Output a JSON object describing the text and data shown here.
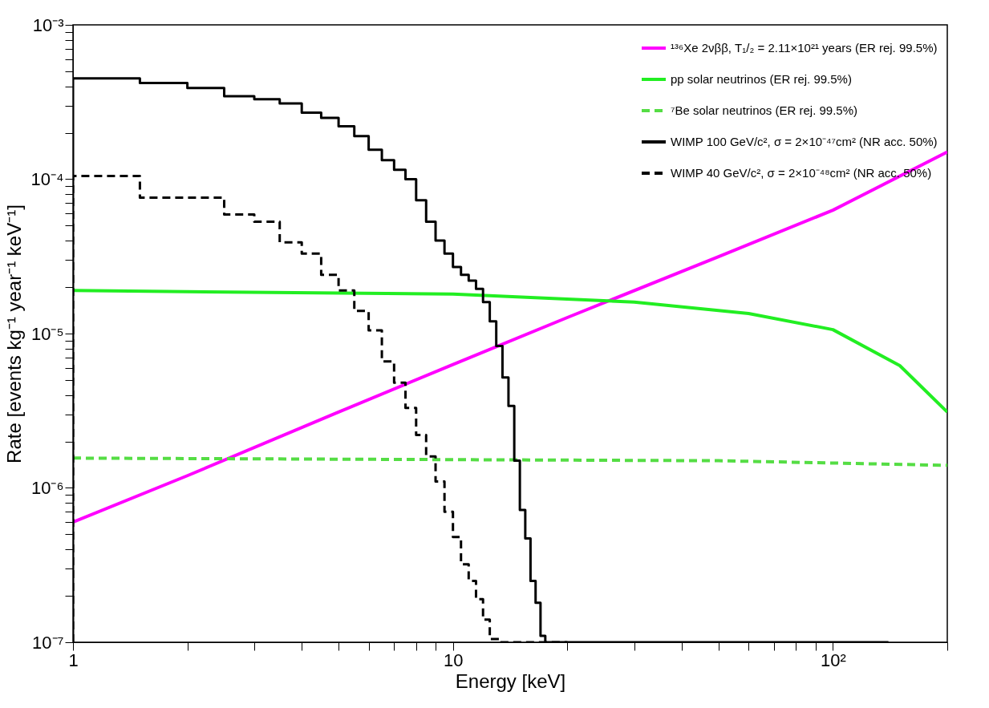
{
  "chart_data": {
    "type": "line",
    "xlabel": "Energy [keV]",
    "ylabel": "Rate [events kg⁻¹ year⁻¹ keV⁻¹]",
    "log": "xy",
    "legend": "top right",
    "xlim": [
      1,
      200
    ],
    "ylim": [
      1e-07,
      0.001
    ],
    "xticks": [
      1,
      {
        "value": 2,
        "label": null
      },
      {
        "value": 3,
        "label": null
      },
      {
        "value": 4,
        "label": null
      },
      {
        "value": 5,
        "label": null
      },
      {
        "value": 6,
        "label": null
      },
      {
        "value": 7,
        "label": null
      },
      {
        "value": 8,
        "label": null
      },
      {
        "value": 9,
        "label": null
      },
      10,
      {
        "value": 20,
        "label": null
      },
      {
        "value": 30,
        "label": null
      },
      {
        "value": 40,
        "label": null
      },
      {
        "value": 50,
        "label": null
      },
      {
        "value": 60,
        "label": null
      },
      {
        "value": 70,
        "label": null
      },
      {
        "value": 80,
        "label": null
      },
      {
        "value": 90,
        "label": null
      },
      {
        "value": 100,
        "label": "10²"
      },
      {
        "value": 200,
        "label": null
      }
    ],
    "yticks": [
      {
        "value": 1e-07,
        "label": "10⁻⁷"
      },
      {
        "value": 2e-07,
        "label": null
      },
      {
        "value": 3e-07,
        "label": null
      },
      {
        "value": 4e-07,
        "label": null
      },
      {
        "value": 5e-07,
        "label": null
      },
      {
        "value": 6e-07,
        "label": null
      },
      {
        "value": 7e-07,
        "label": null
      },
      {
        "value": 8e-07,
        "label": null
      },
      {
        "value": 9e-07,
        "label": null
      },
      {
        "value": 1e-06,
        "label": "10⁻⁶"
      },
      {
        "value": 2e-06,
        "label": null
      },
      {
        "value": 3e-06,
        "label": null
      },
      {
        "value": 4e-06,
        "label": null
      },
      {
        "value": 5e-06,
        "label": null
      },
      {
        "value": 6e-06,
        "label": null
      },
      {
        "value": 7e-06,
        "label": null
      },
      {
        "value": 8e-06,
        "label": null
      },
      {
        "value": 9e-06,
        "label": null
      },
      {
        "value": 1e-05,
        "label": "10⁻⁵"
      },
      {
        "value": 2e-05,
        "label": null
      },
      {
        "value": 3e-05,
        "label": null
      },
      {
        "value": 4e-05,
        "label": null
      },
      {
        "value": 5e-05,
        "label": null
      },
      {
        "value": 6e-05,
        "label": null
      },
      {
        "value": 7e-05,
        "label": null
      },
      {
        "value": 8e-05,
        "label": null
      },
      {
        "value": 9e-05,
        "label": null
      },
      {
        "value": 0.0001,
        "label": "10⁻⁴"
      },
      {
        "value": 0.0002,
        "label": null
      },
      {
        "value": 0.0003,
        "label": null
      },
      {
        "value": 0.0004,
        "label": null
      },
      {
        "value": 0.0005,
        "label": null
      },
      {
        "value": 0.0006,
        "label": null
      },
      {
        "value": 0.0007,
        "label": null
      },
      {
        "value": 0.0008,
        "label": null
      },
      {
        "value": 0.0009,
        "label": null
      },
      {
        "value": 0.001,
        "label": "10⁻³"
      }
    ],
    "series": [
      {
        "name": "¹³⁶Xe 2νββ, T₁/₂ = 2.11×10²¹ years (ER rej. 99.5%)",
        "color": "#ff00ff",
        "line_style": "solid",
        "x": [
          1,
          2,
          5,
          10,
          20,
          50,
          100,
          200
        ],
        "values": [
          6e-07,
          1.2e-06,
          3.1e-06,
          6.3e-06,
          1.27e-05,
          3.15e-05,
          6.3e-05,
          0.00015
        ]
      },
      {
        "name": "pp solar neutrinos (ER rej. 99.5%)",
        "color": "#22ee22",
        "line_style": "solid",
        "x": [
          1,
          10,
          30,
          60,
          100,
          150,
          200
        ],
        "values": [
          1.9e-05,
          1.8e-05,
          1.6e-05,
          1.35e-05,
          1.06e-05,
          6.2e-06,
          3.1e-06
        ]
      },
      {
        "name": "⁷Be solar neutrinos (ER rej. 99.5%)",
        "color": "#55dd44",
        "line_style": "dashed",
        "x": [
          1,
          50,
          200
        ],
        "values": [
          1.56e-06,
          1.5e-06,
          1.4e-06
        ]
      },
      {
        "name": "WIMP 100 GeV/c², σ = 2×10⁻⁴⁷cm² (NR acc. 50%)",
        "color": "#000000",
        "type": "step",
        "line_style": "solid",
        "x": [
          1,
          1,
          1.5,
          2,
          2.5,
          3,
          3.5,
          4,
          4.5,
          5,
          5.5,
          6,
          6.5,
          7,
          7.5,
          8,
          8.5,
          9,
          9.5,
          10,
          10.5,
          11,
          11.5,
          12,
          12.5,
          13,
          13.5,
          14,
          14.5,
          15,
          15.5,
          16,
          16.5,
          17,
          17.5,
          140
        ],
        "values": [
          1e-07,
          0.00045,
          0.00042,
          0.00039,
          0.000345,
          0.00033,
          0.00031,
          0.00027,
          0.00025,
          0.00022,
          0.00019,
          0.000155,
          0.000133,
          0.000115,
          0.0001,
          7.3e-05,
          5.3e-05,
          4e-05,
          3.3e-05,
          2.7e-05,
          2.4e-05,
          2.2e-05,
          1.95e-05,
          1.6e-05,
          1.2e-05,
          8.3e-06,
          5.2e-06,
          3.4e-06,
          1.5e-06,
          7.2e-07,
          4.7e-07,
          2.5e-07,
          1.8e-07,
          1.1e-07,
          1e-07,
          1e-07
        ]
      },
      {
        "name": "WIMP 40 GeV/c², σ = 2×10⁻⁴⁸cm² (NR acc. 50%)",
        "color": "#000000",
        "type": "step",
        "line_style": "dashed",
        "x": [
          1,
          1,
          1.5,
          2.5,
          3,
          3.5,
          4,
          4.5,
          5,
          5.5,
          6,
          6.5,
          7,
          7.5,
          8,
          8.5,
          9,
          9.5,
          10,
          10.5,
          11,
          11.5,
          12,
          12.5,
          13.3,
          20
        ],
        "values": [
          1e-07,
          0.000105,
          7.6e-05,
          5.9e-05,
          5.3e-05,
          3.9e-05,
          3.3e-05,
          2.4e-05,
          1.9e-05,
          1.4e-05,
          1.05e-05,
          6.6e-06,
          4.8e-06,
          3.3e-06,
          2.2e-06,
          1.6e-06,
          1.1e-06,
          7e-07,
          4.8e-07,
          3.2e-07,
          2.5e-07,
          1.9e-07,
          1.4e-07,
          1.05e-07,
          1e-07,
          1e-07
        ]
      }
    ]
  }
}
